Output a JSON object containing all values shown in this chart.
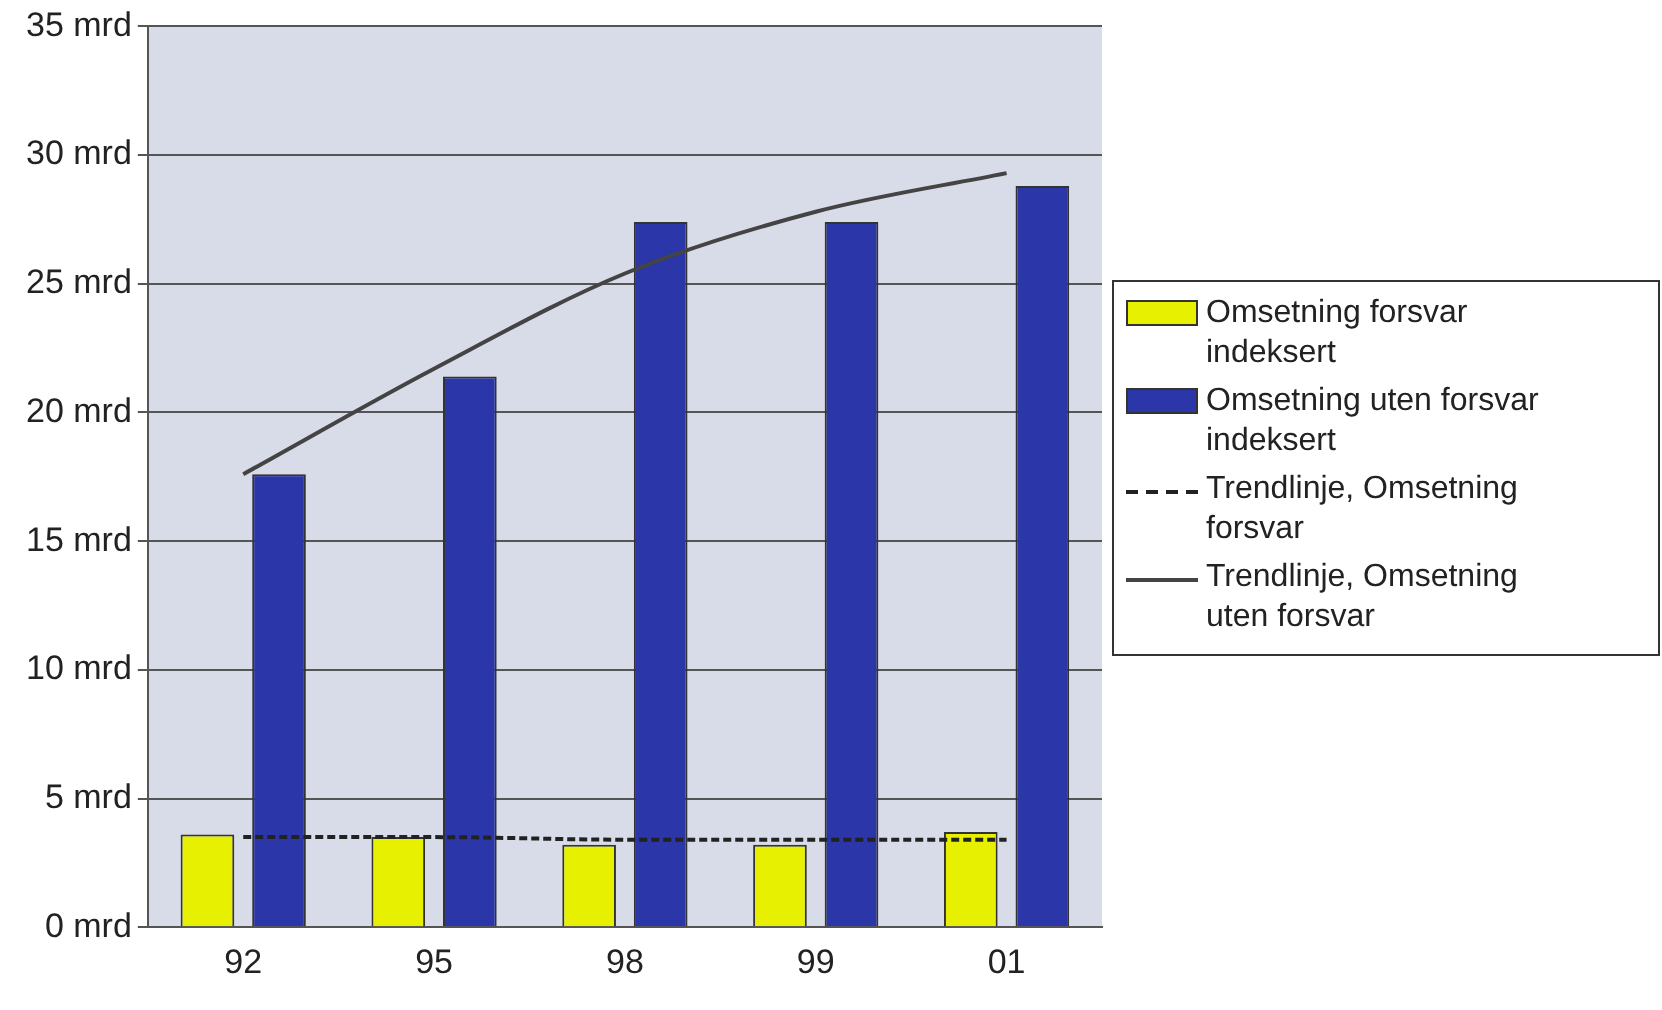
{
  "chart_data": {
    "type": "bar",
    "categories": [
      "92",
      "95",
      "98",
      "99",
      "01"
    ],
    "series": [
      {
        "name": "Omsetning forsvar indeksert",
        "color": "#e6f000",
        "values": [
          3.6,
          3.5,
          3.2,
          3.2,
          3.7
        ]
      },
      {
        "name": "Omsetning uten forsvar indeksert",
        "color": "#2b36a8",
        "values": [
          17.6,
          21.4,
          27.4,
          27.4,
          28.8
        ]
      },
      {
        "name": "Trendlinje, Omsetning forsvar",
        "type": "line",
        "color": "#222222",
        "line_style": "dashed",
        "values": [
          3.5,
          3.5,
          3.4,
          3.4,
          3.4
        ]
      },
      {
        "name": "Trendlinje, Omsetning uten forsvar",
        "type": "line",
        "color": "#444444",
        "line_style": "solid",
        "values": [
          17.6,
          21.7,
          25.4,
          27.8,
          29.3
        ]
      }
    ],
    "ylim": [
      0,
      35
    ],
    "yticks": [
      {
        "value": 0,
        "label": "0 mrd"
      },
      {
        "value": 5,
        "label": "5 mrd"
      },
      {
        "value": 10,
        "label": "10 mrd"
      },
      {
        "value": 15,
        "label": "15 mrd"
      },
      {
        "value": 20,
        "label": "20 mrd"
      },
      {
        "value": 25,
        "label": "25 mrd"
      },
      {
        "value": 30,
        "label": "30 mrd"
      },
      {
        "value": 35,
        "label": "35 mrd"
      }
    ],
    "grid": "y",
    "legend": "right",
    "marker": "none"
  }
}
